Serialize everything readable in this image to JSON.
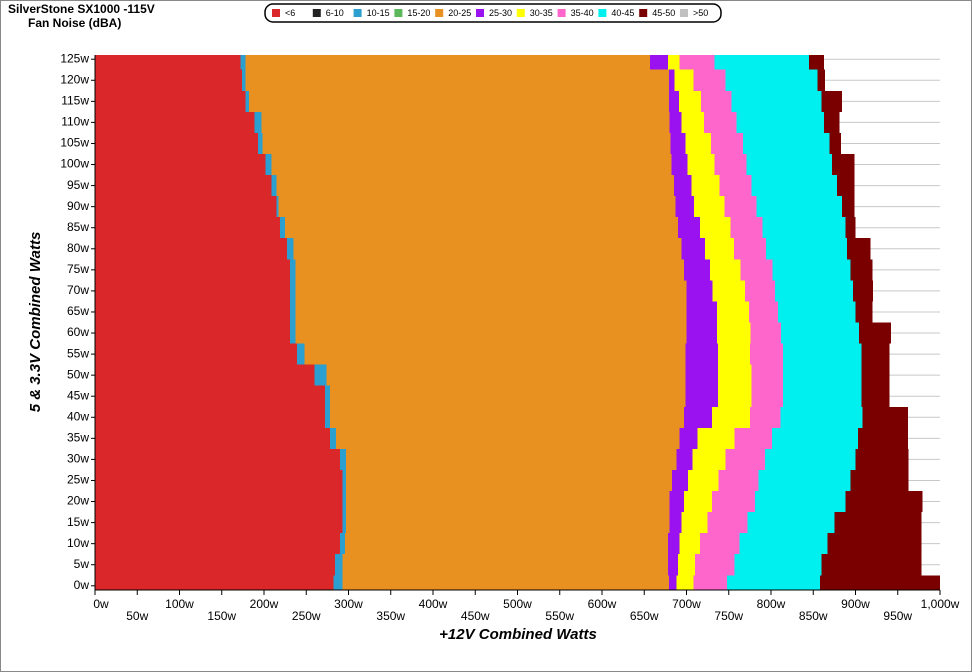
{
  "chart_data": {
    "type": "stacked-hbar",
    "title": "SilverStone  SX1000 -115V",
    "subtitle": "Fan Noise (dBA)",
    "x_label": "+12V Combined Watts",
    "y_label": "5 & 3.3V Combined Watts",
    "xlim": [
      0,
      1000
    ],
    "ylim": [
      -1,
      126
    ],
    "grid": true,
    "xticks": [
      {
        "value": 0,
        "label": "0w"
      },
      {
        "value": 50,
        "label": "50w"
      },
      {
        "value": 100,
        "label": "100w"
      },
      {
        "value": 150,
        "label": "150w"
      },
      {
        "value": 200,
        "label": "200w"
      },
      {
        "value": 250,
        "label": "250w"
      },
      {
        "value": 300,
        "label": "300w"
      },
      {
        "value": 350,
        "label": "350w"
      },
      {
        "value": 400,
        "label": "400w"
      },
      {
        "value": 450,
        "label": "450w"
      },
      {
        "value": 500,
        "label": "500w"
      },
      {
        "value": 550,
        "label": "550w"
      },
      {
        "value": 600,
        "label": "600w"
      },
      {
        "value": 650,
        "label": "650w"
      },
      {
        "value": 700,
        "label": "700w"
      },
      {
        "value": 750,
        "label": "750w"
      },
      {
        "value": 800,
        "label": "800w"
      },
      {
        "value": 850,
        "label": "850w"
      },
      {
        "value": 900,
        "label": "900w"
      },
      {
        "value": 950,
        "label": "950w"
      },
      {
        "value": 1000,
        "label": "1,000w"
      }
    ],
    "yticks": [
      {
        "value": 0,
        "label": "0w"
      },
      {
        "value": 5,
        "label": "5w"
      },
      {
        "value": 10,
        "label": "10w"
      },
      {
        "value": 15,
        "label": "15w"
      },
      {
        "value": 20,
        "label": "20w"
      },
      {
        "value": 25,
        "label": "25w"
      },
      {
        "value": 30,
        "label": "30w"
      },
      {
        "value": 35,
        "label": "35w"
      },
      {
        "value": 40,
        "label": "40w"
      },
      {
        "value": 45,
        "label": "45w"
      },
      {
        "value": 50,
        "label": "50w"
      },
      {
        "value": 55,
        "label": "55w"
      },
      {
        "value": 60,
        "label": "60w"
      },
      {
        "value": 65,
        "label": "65w"
      },
      {
        "value": 70,
        "label": "70w"
      },
      {
        "value": 75,
        "label": "75w"
      },
      {
        "value": 80,
        "label": "80w"
      },
      {
        "value": 85,
        "label": "85w"
      },
      {
        "value": 90,
        "label": "90w"
      },
      {
        "value": 95,
        "label": "95w"
      },
      {
        "value": 100,
        "label": "100w"
      },
      {
        "value": 105,
        "label": "105w"
      },
      {
        "value": 110,
        "label": "110w"
      },
      {
        "value": 115,
        "label": "115w"
      },
      {
        "value": 120,
        "label": "120w"
      },
      {
        "value": 125,
        "label": "125w"
      }
    ],
    "rows": [
      0,
      5,
      10,
      15,
      20,
      25,
      30,
      35,
      40,
      45,
      50,
      55,
      60,
      65,
      70,
      75,
      80,
      85,
      90,
      95,
      100,
      105,
      110,
      115,
      120,
      125
    ],
    "series": [
      {
        "name": "<6",
        "color": "#d9272a",
        "values": [
          282,
          284,
          290,
          293,
          293,
          293,
          290,
          278,
          272,
          272,
          260,
          239,
          231,
          231,
          231,
          231,
          227,
          219,
          215,
          209,
          202,
          193,
          189,
          178,
          174,
          172
        ]
      },
      {
        "name": "6-10",
        "color": "#222222",
        "values": [
          null,
          null,
          null,
          null,
          null,
          null,
          null,
          null,
          null,
          null,
          null,
          null,
          null,
          null,
          null,
          null,
          null,
          null,
          null,
          null,
          null,
          null,
          null,
          null,
          null,
          null
        ]
      },
      {
        "name": "10-15",
        "color": "#2a9fd0",
        "values": [
          11,
          9,
          6,
          4,
          4,
          4,
          7,
          7,
          6,
          6,
          14,
          9,
          6,
          6,
          6,
          6,
          8,
          6,
          2,
          6,
          7,
          5,
          8,
          4,
          4,
          6
        ]
      },
      {
        "name": "15-20",
        "color": "#5cb85c",
        "values": [
          null,
          null,
          null,
          null,
          null,
          null,
          null,
          null,
          null,
          null,
          null,
          null,
          null,
          null,
          null,
          null,
          null,
          null,
          null,
          null,
          null,
          null,
          null,
          null,
          null,
          null
        ]
      },
      {
        "name": "20-25",
        "color": "#e89020",
        "values": [
          386,
          385,
          382,
          383,
          383,
          386,
          391,
          407,
          419,
          421,
          425,
          451,
          463,
          463,
          463,
          460,
          459,
          465,
          470,
          470,
          473,
          483,
          483,
          497,
          501,
          479
        ]
      },
      {
        "name": "25-30",
        "color": "#9a12f0",
        "values": [
          9,
          12,
          14,
          14,
          17,
          19,
          19,
          21,
          33,
          38,
          38,
          38,
          36,
          36,
          31,
          31,
          28,
          26,
          22,
          21,
          19,
          18,
          14,
          12,
          7,
          21
        ]
      },
      {
        "name": "30-35",
        "color": "#ffff00",
        "values": [
          20,
          20,
          24,
          31,
          33,
          36,
          39,
          44,
          45,
          40,
          40,
          38,
          40,
          38,
          38,
          36,
          34,
          36,
          36,
          33,
          32,
          30,
          27,
          26,
          22,
          14
        ]
      },
      {
        "name": "35-40",
        "color": "#ff66cc",
        "values": [
          40,
          47,
          47,
          47,
          51,
          47,
          47,
          44,
          36,
          37,
          37,
          39,
          36,
          34,
          36,
          38,
          38,
          38,
          38,
          38,
          38,
          38,
          38,
          36,
          38,
          41
        ]
      },
      {
        "name": "40-45",
        "color": "#00f0f0",
        "values": [
          110,
          103,
          104,
          103,
          107,
          109,
          107,
          102,
          97,
          93,
          93,
          93,
          92,
          92,
          92,
          92,
          96,
          98,
          101,
          101,
          101,
          102,
          104,
          107,
          109,
          112
        ]
      },
      {
        "name": "45-50",
        "color": "#7a0000",
        "values": [
          142,
          118,
          111,
          103,
          91,
          69,
          63,
          59,
          54,
          33,
          33,
          33,
          38,
          20,
          24,
          26,
          28,
          12,
          15,
          21,
          27,
          14,
          18,
          24,
          9,
          18
        ]
      },
      {
        "name": ">50",
        "color": "#c0c0c0",
        "values": [
          null,
          null,
          null,
          null,
          null,
          null,
          null,
          null,
          null,
          null,
          null,
          null,
          null,
          null,
          null,
          null,
          null,
          null,
          null,
          null,
          null,
          null,
          null,
          null,
          null,
          null
        ]
      }
    ]
  }
}
